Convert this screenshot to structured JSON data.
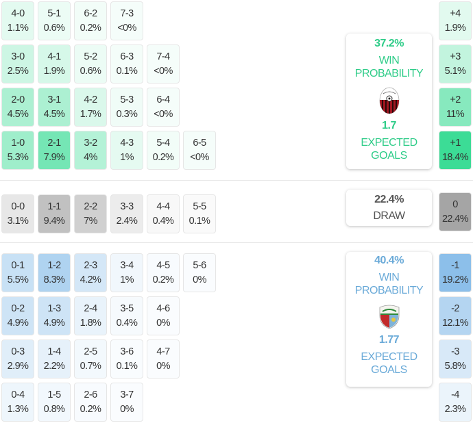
{
  "home": {
    "win_probability": "37.2%",
    "win_label": [
      "WIN",
      "PROBABILITY"
    ],
    "expected_goals": "1.7",
    "xg_label": [
      "EXPECTED",
      "GOALS"
    ],
    "crest_icon": "home-team-crest-icon",
    "color": "#2ecc88",
    "scores": [
      [
        {
          "s": "4-0",
          "p": "1.1%"
        },
        {
          "s": "5-1",
          "p": "0.6%"
        },
        {
          "s": "6-2",
          "p": "0.2%"
        },
        {
          "s": "7-3",
          "p": "<0%"
        }
      ],
      [
        {
          "s": "3-0",
          "p": "2.5%"
        },
        {
          "s": "4-1",
          "p": "1.9%"
        },
        {
          "s": "5-2",
          "p": "0.6%"
        },
        {
          "s": "6-3",
          "p": "0.1%"
        },
        {
          "s": "7-4",
          "p": "<0%"
        }
      ],
      [
        {
          "s": "2-0",
          "p": "4.5%"
        },
        {
          "s": "3-1",
          "p": "4.5%"
        },
        {
          "s": "4-2",
          "p": "1.7%"
        },
        {
          "s": "5-3",
          "p": "0.3%"
        },
        {
          "s": "6-4",
          "p": "<0%"
        }
      ],
      [
        {
          "s": "1-0",
          "p": "5.3%"
        },
        {
          "s": "2-1",
          "p": "7.9%"
        },
        {
          "s": "3-2",
          "p": "4%"
        },
        {
          "s": "4-3",
          "p": "1%"
        },
        {
          "s": "5-4",
          "p": "0.2%"
        },
        {
          "s": "6-5",
          "p": "<0%"
        }
      ]
    ],
    "margins": [
      {
        "m": "+4",
        "p": "1.9%"
      },
      {
        "m": "+3",
        "p": "5.1%"
      },
      {
        "m": "+2",
        "p": "11%"
      },
      {
        "m": "+1",
        "p": "18.4%"
      }
    ]
  },
  "draw": {
    "probability": "22.4%",
    "label": "DRAW",
    "scores": [
      {
        "s": "0-0",
        "p": "3.1%"
      },
      {
        "s": "1-1",
        "p": "9.4%"
      },
      {
        "s": "2-2",
        "p": "7%"
      },
      {
        "s": "3-3",
        "p": "2.4%"
      },
      {
        "s": "4-4",
        "p": "0.4%"
      },
      {
        "s": "5-5",
        "p": "0.1%"
      }
    ],
    "margin": {
      "m": "0",
      "p": "22.4%"
    }
  },
  "away": {
    "win_probability": "40.4%",
    "win_label": [
      "WIN",
      "PROBABILITY"
    ],
    "expected_goals": "1.77",
    "xg_label": [
      "EXPECTED",
      "GOALS"
    ],
    "crest_icon": "away-team-crest-icon",
    "crest_text": [
      "The New",
      "Saints"
    ],
    "color": "#6aaad8",
    "scores": [
      [
        {
          "s": "0-1",
          "p": "5.5%"
        },
        {
          "s": "1-2",
          "p": "8.3%"
        },
        {
          "s": "2-3",
          "p": "4.2%"
        },
        {
          "s": "3-4",
          "p": "1%"
        },
        {
          "s": "4-5",
          "p": "0.2%"
        },
        {
          "s": "5-6",
          "p": "0%"
        }
      ],
      [
        {
          "s": "0-2",
          "p": "4.9%"
        },
        {
          "s": "1-3",
          "p": "4.9%"
        },
        {
          "s": "2-4",
          "p": "1.8%"
        },
        {
          "s": "3-5",
          "p": "0.4%"
        },
        {
          "s": "4-6",
          "p": "0%"
        }
      ],
      [
        {
          "s": "0-3",
          "p": "2.9%"
        },
        {
          "s": "1-4",
          "p": "2.2%"
        },
        {
          "s": "2-5",
          "p": "0.7%"
        },
        {
          "s": "3-6",
          "p": "0.1%"
        },
        {
          "s": "4-7",
          "p": "0%"
        }
      ],
      [
        {
          "s": "0-4",
          "p": "1.3%"
        },
        {
          "s": "1-5",
          "p": "0.8%"
        },
        {
          "s": "2-6",
          "p": "0.2%"
        },
        {
          "s": "3-7",
          "p": "0%"
        }
      ]
    ],
    "margins": [
      {
        "m": "-1",
        "p": "19.2%"
      },
      {
        "m": "-2",
        "p": "12.1%"
      },
      {
        "m": "-3",
        "p": "5.8%"
      },
      {
        "m": "-4",
        "p": "2.3%"
      }
    ]
  }
}
